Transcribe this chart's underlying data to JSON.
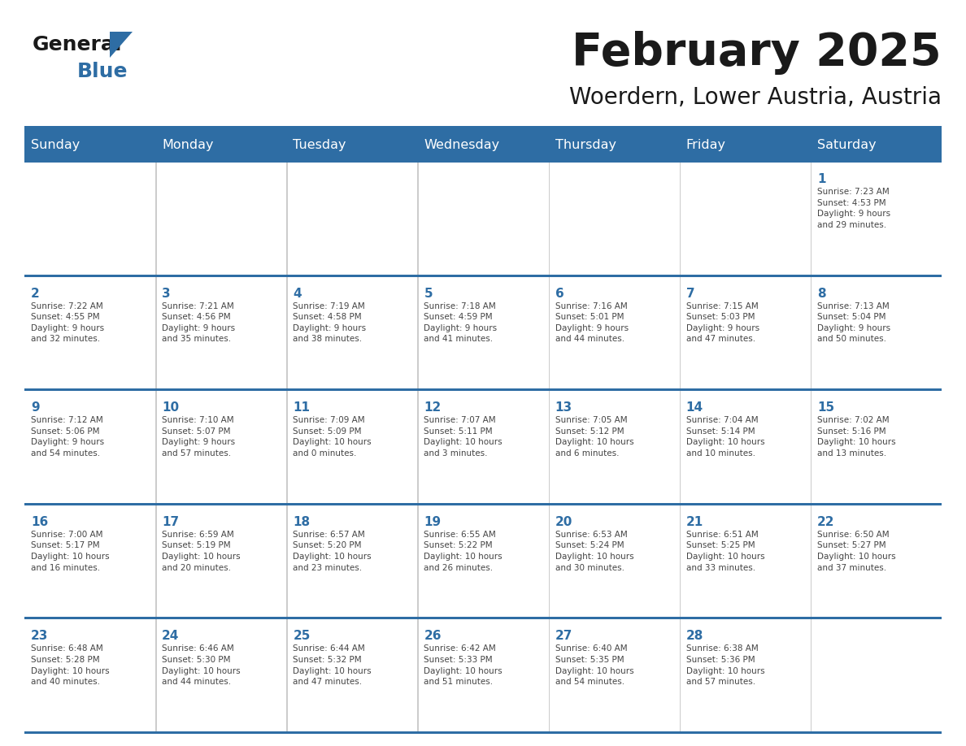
{
  "title": "February 2025",
  "subtitle": "Woerdern, Lower Austria, Austria",
  "days_of_week": [
    "Sunday",
    "Monday",
    "Tuesday",
    "Wednesday",
    "Thursday",
    "Friday",
    "Saturday"
  ],
  "header_bg": "#2E6DA4",
  "header_text": "#FFFFFF",
  "cell_bg": "#FFFFFF",
  "cell_alt_bg": "#F2F2F2",
  "cell_border": "#2E6DA4",
  "day_number_color": "#2E6DA4",
  "info_text_color": "#444444",
  "title_color": "#1a1a1a",
  "background": "#FFFFFF",
  "logo_general_color": "#1a1a1a",
  "logo_blue_color": "#2E6DA4",
  "divider_color": "#2E6DA4",
  "weeks": [
    [
      {
        "day": null,
        "info": ""
      },
      {
        "day": null,
        "info": ""
      },
      {
        "day": null,
        "info": ""
      },
      {
        "day": null,
        "info": ""
      },
      {
        "day": null,
        "info": ""
      },
      {
        "day": null,
        "info": ""
      },
      {
        "day": 1,
        "info": "Sunrise: 7:23 AM\nSunset: 4:53 PM\nDaylight: 9 hours\nand 29 minutes."
      }
    ],
    [
      {
        "day": 2,
        "info": "Sunrise: 7:22 AM\nSunset: 4:55 PM\nDaylight: 9 hours\nand 32 minutes."
      },
      {
        "day": 3,
        "info": "Sunrise: 7:21 AM\nSunset: 4:56 PM\nDaylight: 9 hours\nand 35 minutes."
      },
      {
        "day": 4,
        "info": "Sunrise: 7:19 AM\nSunset: 4:58 PM\nDaylight: 9 hours\nand 38 minutes."
      },
      {
        "day": 5,
        "info": "Sunrise: 7:18 AM\nSunset: 4:59 PM\nDaylight: 9 hours\nand 41 minutes."
      },
      {
        "day": 6,
        "info": "Sunrise: 7:16 AM\nSunset: 5:01 PM\nDaylight: 9 hours\nand 44 minutes."
      },
      {
        "day": 7,
        "info": "Sunrise: 7:15 AM\nSunset: 5:03 PM\nDaylight: 9 hours\nand 47 minutes."
      },
      {
        "day": 8,
        "info": "Sunrise: 7:13 AM\nSunset: 5:04 PM\nDaylight: 9 hours\nand 50 minutes."
      }
    ],
    [
      {
        "day": 9,
        "info": "Sunrise: 7:12 AM\nSunset: 5:06 PM\nDaylight: 9 hours\nand 54 minutes."
      },
      {
        "day": 10,
        "info": "Sunrise: 7:10 AM\nSunset: 5:07 PM\nDaylight: 9 hours\nand 57 minutes."
      },
      {
        "day": 11,
        "info": "Sunrise: 7:09 AM\nSunset: 5:09 PM\nDaylight: 10 hours\nand 0 minutes."
      },
      {
        "day": 12,
        "info": "Sunrise: 7:07 AM\nSunset: 5:11 PM\nDaylight: 10 hours\nand 3 minutes."
      },
      {
        "day": 13,
        "info": "Sunrise: 7:05 AM\nSunset: 5:12 PM\nDaylight: 10 hours\nand 6 minutes."
      },
      {
        "day": 14,
        "info": "Sunrise: 7:04 AM\nSunset: 5:14 PM\nDaylight: 10 hours\nand 10 minutes."
      },
      {
        "day": 15,
        "info": "Sunrise: 7:02 AM\nSunset: 5:16 PM\nDaylight: 10 hours\nand 13 minutes."
      }
    ],
    [
      {
        "day": 16,
        "info": "Sunrise: 7:00 AM\nSunset: 5:17 PM\nDaylight: 10 hours\nand 16 minutes."
      },
      {
        "day": 17,
        "info": "Sunrise: 6:59 AM\nSunset: 5:19 PM\nDaylight: 10 hours\nand 20 minutes."
      },
      {
        "day": 18,
        "info": "Sunrise: 6:57 AM\nSunset: 5:20 PM\nDaylight: 10 hours\nand 23 minutes."
      },
      {
        "day": 19,
        "info": "Sunrise: 6:55 AM\nSunset: 5:22 PM\nDaylight: 10 hours\nand 26 minutes."
      },
      {
        "day": 20,
        "info": "Sunrise: 6:53 AM\nSunset: 5:24 PM\nDaylight: 10 hours\nand 30 minutes."
      },
      {
        "day": 21,
        "info": "Sunrise: 6:51 AM\nSunset: 5:25 PM\nDaylight: 10 hours\nand 33 minutes."
      },
      {
        "day": 22,
        "info": "Sunrise: 6:50 AM\nSunset: 5:27 PM\nDaylight: 10 hours\nand 37 minutes."
      }
    ],
    [
      {
        "day": 23,
        "info": "Sunrise: 6:48 AM\nSunset: 5:28 PM\nDaylight: 10 hours\nand 40 minutes."
      },
      {
        "day": 24,
        "info": "Sunrise: 6:46 AM\nSunset: 5:30 PM\nDaylight: 10 hours\nand 44 minutes."
      },
      {
        "day": 25,
        "info": "Sunrise: 6:44 AM\nSunset: 5:32 PM\nDaylight: 10 hours\nand 47 minutes."
      },
      {
        "day": 26,
        "info": "Sunrise: 6:42 AM\nSunset: 5:33 PM\nDaylight: 10 hours\nand 51 minutes."
      },
      {
        "day": 27,
        "info": "Sunrise: 6:40 AM\nSunset: 5:35 PM\nDaylight: 10 hours\nand 54 minutes."
      },
      {
        "day": 28,
        "info": "Sunrise: 6:38 AM\nSunset: 5:36 PM\nDaylight: 10 hours\nand 57 minutes."
      },
      {
        "day": null,
        "info": ""
      }
    ]
  ]
}
